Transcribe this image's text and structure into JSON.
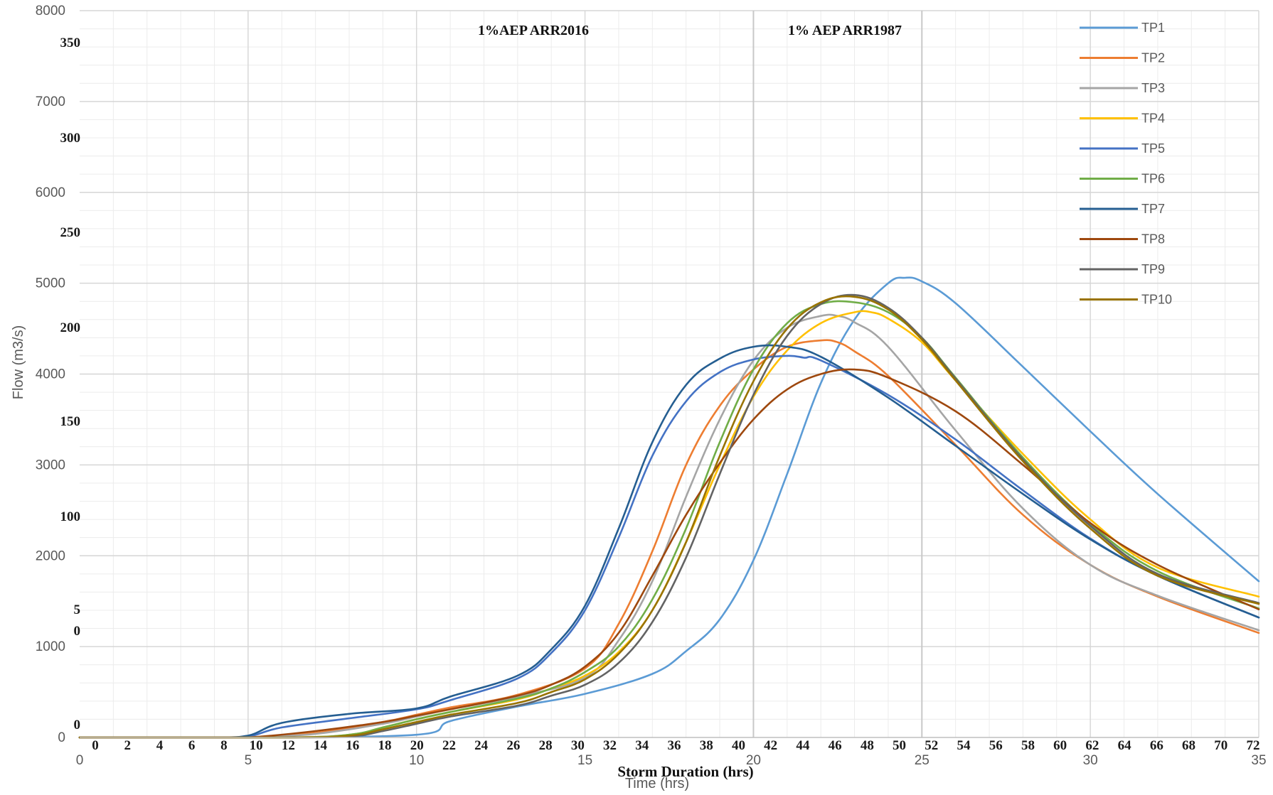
{
  "chart_data": {
    "type": "line",
    "xlabel": "Time (hrs)",
    "ylabel": "Flow (m3/s)",
    "overlay_xlabel": "Storm Duration (hrs)",
    "xlim": [
      0,
      35
    ],
    "ylim": [
      0,
      8000
    ],
    "x_ticks": [
      "0",
      "5",
      "10",
      "15",
      "20",
      "25",
      "30",
      "35"
    ],
    "y_ticks": [
      "0",
      "1000",
      "2000",
      "3000",
      "4000",
      "5000",
      "6000",
      "7000",
      "8000"
    ],
    "overlay_x_ticks": [
      "0",
      "2",
      "4",
      "6",
      "8",
      "10",
      "12",
      "14",
      "16",
      "18",
      "20",
      "22",
      "24",
      "26",
      "28",
      "30",
      "32",
      "34",
      "36",
      "38",
      "40",
      "42",
      "44",
      "46",
      "48",
      "50",
      "52",
      "54",
      "56",
      "58",
      "60",
      "62",
      "64",
      "66",
      "68",
      "70",
      "72"
    ],
    "overlay_y_ticks": [
      {
        "label": "0",
        "value": 0
      },
      {
        "label": "5",
        "value": 50
      },
      {
        "label": "0",
        "value": 50
      },
      {
        "label": "100",
        "value": 100
      },
      {
        "label": "150",
        "value": 150
      },
      {
        "label": "200",
        "value": 200
      },
      {
        "label": "250",
        "value": 250
      },
      {
        "label": "300",
        "value": 300
      },
      {
        "label": "350",
        "value": 350
      }
    ],
    "annotations": [
      "1%AEP ARR2016",
      "1% AEP ARR1987"
    ],
    "vertical_markers": [
      20,
      25
    ],
    "grid": true,
    "legend_position": "top-right",
    "series": [
      {
        "name": "TP1",
        "color": "#5b9bd5",
        "x": [
          0,
          5,
          10,
          11,
          13,
          15,
          17,
          18,
          19,
          20,
          21,
          22,
          23,
          24,
          24.5,
          25,
          26,
          28,
          30,
          32,
          35
        ],
        "y": [
          0,
          0,
          30,
          180,
          340,
          480,
          700,
          950,
          1300,
          1950,
          2900,
          3900,
          4600,
          5000,
          5060,
          5020,
          4780,
          4080,
          3370,
          2680,
          1720
        ]
      },
      {
        "name": "TP2",
        "color": "#ed7d31",
        "x": [
          0,
          4,
          5,
          7,
          9,
          10,
          11,
          13,
          15,
          16,
          17,
          18,
          19,
          20,
          21,
          22,
          22.5,
          23,
          24,
          26,
          28,
          30,
          32,
          35
        ],
        "y": [
          0,
          0,
          0,
          50,
          170,
          250,
          330,
          470,
          760,
          1250,
          2050,
          3000,
          3650,
          4050,
          4300,
          4370,
          4350,
          4250,
          3980,
          3220,
          2450,
          1900,
          1550,
          1150
        ]
      },
      {
        "name": "TP3",
        "color": "#a5a5a5",
        "x": [
          0,
          4,
          5,
          7,
          9,
          10,
          11,
          13,
          15,
          16,
          17,
          18,
          19,
          20,
          21,
          22,
          22.5,
          23,
          24,
          26,
          28,
          30,
          32,
          35
        ],
        "y": [
          0,
          0,
          0,
          40,
          150,
          230,
          310,
          450,
          660,
          1070,
          1720,
          2650,
          3500,
          4150,
          4510,
          4640,
          4640,
          4570,
          4300,
          3380,
          2520,
          1900,
          1560,
          1180
        ]
      },
      {
        "name": "TP4",
        "color": "#ffc000",
        "x": [
          0,
          6,
          8,
          9,
          10,
          11,
          13,
          14,
          15,
          16,
          17,
          18,
          19,
          20,
          21,
          22,
          23,
          23.5,
          24,
          25,
          26,
          28,
          30,
          32,
          35
        ],
        "y": [
          0,
          0,
          30,
          110,
          200,
          280,
          420,
          540,
          680,
          940,
          1400,
          2150,
          3000,
          3750,
          4260,
          4560,
          4680,
          4680,
          4610,
          4350,
          3930,
          3120,
          2400,
          1870,
          1550
        ]
      },
      {
        "name": "TP5",
        "color": "#4472c4",
        "x": [
          0,
          3,
          4,
          5,
          6,
          8,
          10,
          11,
          13,
          14,
          15,
          16,
          17,
          18,
          19,
          20,
          21,
          21.5,
          22,
          24,
          26,
          28,
          30,
          32,
          35
        ],
        "y": [
          0,
          0,
          0,
          10,
          110,
          210,
          310,
          410,
          650,
          930,
          1400,
          2200,
          3100,
          3700,
          4020,
          4160,
          4200,
          4180,
          4150,
          3770,
          3280,
          2720,
          2190,
          1780,
          1320
        ]
      },
      {
        "name": "TP6",
        "color": "#70ad47",
        "x": [
          0,
          6,
          8,
          9,
          10,
          11,
          13,
          14,
          15,
          16,
          17,
          18,
          19,
          20,
          21,
          22,
          23,
          24,
          25,
          26,
          28,
          30,
          32,
          35
        ],
        "y": [
          0,
          0,
          30,
          110,
          200,
          280,
          430,
          540,
          720,
          1000,
          1520,
          2300,
          3250,
          4050,
          4560,
          4770,
          4790,
          4680,
          4400,
          3960,
          3080,
          2350,
          1830,
          1420
        ]
      },
      {
        "name": "TP7",
        "color": "#255e91",
        "x": [
          0,
          4,
          5,
          6,
          8,
          10,
          11,
          13,
          14,
          15,
          16,
          17,
          18,
          19,
          20,
          21,
          22,
          24,
          26,
          28,
          30,
          32,
          35
        ],
        "y": [
          0,
          0,
          20,
          160,
          260,
          320,
          450,
          680,
          970,
          1450,
          2300,
          3250,
          3880,
          4170,
          4300,
          4300,
          4190,
          3740,
          3210,
          2680,
          2180,
          1780,
          1320
        ]
      },
      {
        "name": "TP8",
        "color": "#9e480e",
        "x": [
          0,
          4,
          5,
          7,
          9,
          10,
          11,
          13,
          14,
          15,
          16,
          17,
          18,
          19,
          20,
          21,
          22,
          23,
          24,
          26,
          28,
          30,
          32,
          35
        ],
        "y": [
          0,
          0,
          0,
          70,
          170,
          240,
          310,
          460,
          580,
          780,
          1150,
          1780,
          2450,
          3020,
          3500,
          3830,
          4000,
          4050,
          3960,
          3590,
          3000,
          2360,
          1900,
          1410
        ]
      },
      {
        "name": "TP9",
        "color": "#636363",
        "x": [
          0,
          6,
          8,
          9,
          10,
          11,
          13,
          14,
          15,
          16,
          17,
          18,
          19,
          20,
          21,
          22,
          23,
          24,
          25,
          26,
          28,
          30,
          32,
          35
        ],
        "y": [
          0,
          0,
          10,
          70,
          150,
          230,
          350,
          460,
          580,
          820,
          1270,
          1980,
          2900,
          3770,
          4420,
          4770,
          4870,
          4730,
          4400,
          3950,
          3060,
          2330,
          1800,
          1480
        ]
      },
      {
        "name": "TP10",
        "color": "#997300",
        "x": [
          0,
          6,
          8,
          9,
          10,
          11,
          13,
          14,
          15,
          16,
          17,
          18,
          19,
          20,
          21,
          22,
          23,
          24,
          25,
          26,
          28,
          30,
          32,
          35
        ],
        "y": [
          0,
          0,
          20,
          90,
          170,
          250,
          380,
          500,
          640,
          920,
          1400,
          2150,
          3100,
          3920,
          4500,
          4790,
          4850,
          4710,
          4380,
          3930,
          3040,
          2300,
          1780,
          1470
        ]
      }
    ]
  }
}
